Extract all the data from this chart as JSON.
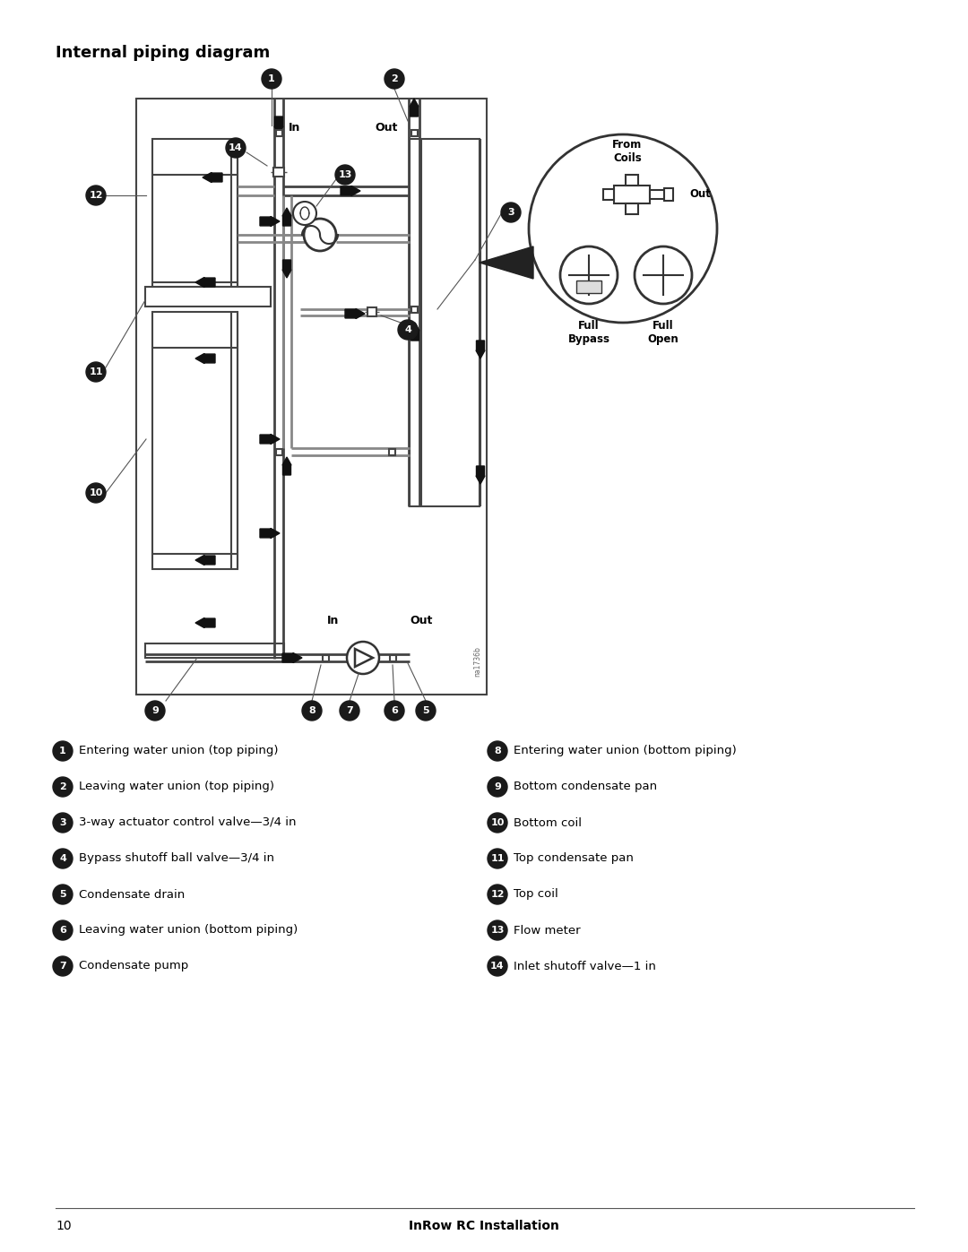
{
  "title": "Internal piping diagram",
  "page_number": "10",
  "page_footer": "InRow RC Installation",
  "background_color": "#ffffff",
  "legend_items_left": [
    {
      "num": "1",
      "text": "Entering water union (top piping)"
    },
    {
      "num": "2",
      "text": "Leaving water union (top piping)"
    },
    {
      "num": "3",
      "text": "3-way actuator control valve—3/4 in"
    },
    {
      "num": "4",
      "text": "Bypass shutoff ball valve—3/4 in"
    },
    {
      "num": "5",
      "text": "Condensate drain"
    },
    {
      "num": "6",
      "text": "Leaving water union (bottom piping)"
    },
    {
      "num": "7",
      "text": "Condensate pump"
    }
  ],
  "legend_items_right": [
    {
      "num": "8",
      "text": "Entering water union (bottom piping)"
    },
    {
      "num": "9",
      "text": "Bottom condensate pan"
    },
    {
      "num": "10",
      "text": "Bottom coil"
    },
    {
      "num": "11",
      "text": "Top condensate pan"
    },
    {
      "num": "12",
      "text": "Top coil"
    },
    {
      "num": "13",
      "text": "Flow meter"
    },
    {
      "num": "14",
      "text": "Inlet shutoff valve—1 in"
    }
  ],
  "pipe_color": "#555555",
  "border_color": "#333333",
  "arrow_color": "#111111",
  "callout_bg": "#1a1a1a"
}
